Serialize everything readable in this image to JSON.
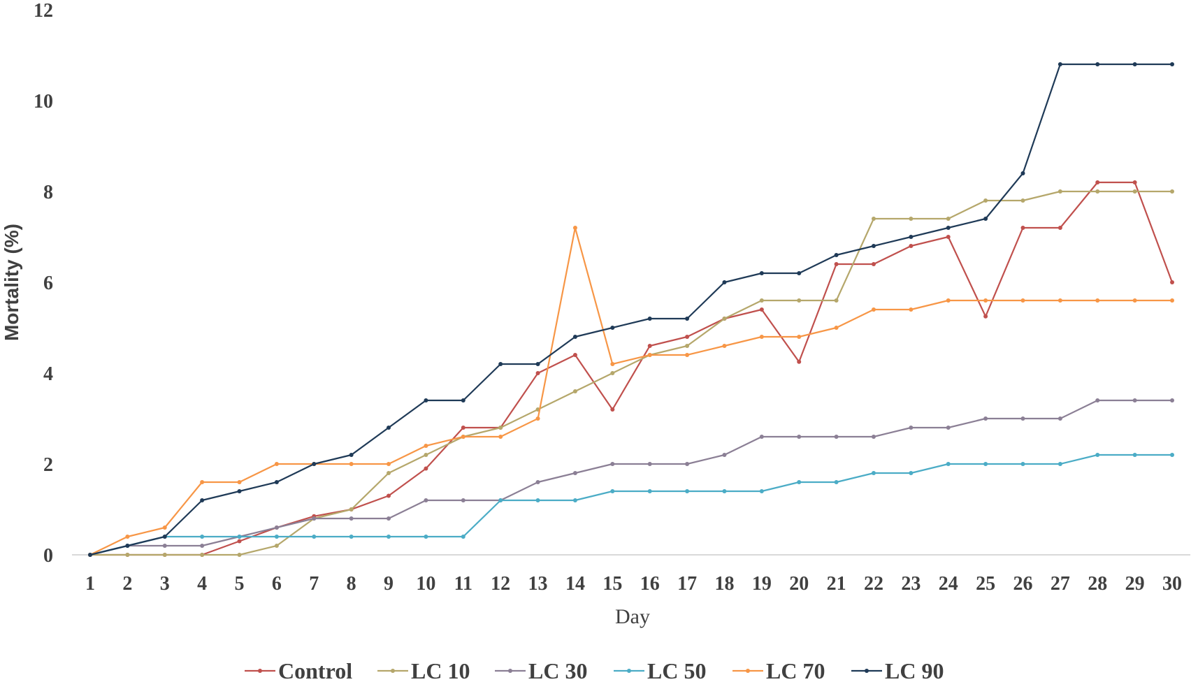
{
  "chart_data": {
    "type": "line",
    "xlabel": "Day",
    "ylabel": "Mortality (%)",
    "ylim": [
      0,
      12
    ],
    "yticks": [
      0,
      2,
      4,
      6,
      8,
      10,
      12
    ],
    "x": [
      1,
      2,
      3,
      4,
      5,
      6,
      7,
      8,
      9,
      10,
      11,
      12,
      13,
      14,
      15,
      16,
      17,
      18,
      19,
      20,
      21,
      22,
      23,
      24,
      25,
      26,
      27,
      28,
      29,
      30
    ],
    "grid": false,
    "legend_position": "bottom",
    "series": [
      {
        "name": "Control",
        "color": "#c0504d",
        "values": [
          0,
          0,
          0,
          0,
          0.3,
          0.6,
          0.85,
          1.0,
          1.3,
          1.9,
          2.8,
          2.8,
          4.0,
          4.4,
          3.2,
          4.6,
          4.8,
          5.2,
          5.4,
          4.25,
          6.4,
          6.4,
          6.8,
          7.0,
          5.25,
          7.2,
          7.2,
          8.2,
          8.2,
          6.0
        ]
      },
      {
        "name": "LC 10",
        "color": "#b5a76b",
        "values": [
          0,
          0,
          0,
          0,
          0,
          0.2,
          0.8,
          1.0,
          1.8,
          2.2,
          2.6,
          2.8,
          3.2,
          3.6,
          4.0,
          4.4,
          4.6,
          5.2,
          5.6,
          5.6,
          5.6,
          7.4,
          7.4,
          7.4,
          7.8,
          7.8,
          8.0,
          8.0,
          8.0,
          8.0
        ]
      },
      {
        "name": "LC 30",
        "color": "#8b7f95",
        "values": [
          0,
          0.2,
          0.2,
          0.2,
          0.4,
          0.6,
          0.8,
          0.8,
          0.8,
          1.2,
          1.2,
          1.2,
          1.6,
          1.8,
          2.0,
          2.0,
          2.0,
          2.2,
          2.6,
          2.6,
          2.6,
          2.6,
          2.8,
          2.8,
          3.0,
          3.0,
          3.0,
          3.4,
          3.4,
          3.4
        ]
      },
      {
        "name": "LC 50",
        "color": "#4bacc6",
        "values": [
          0,
          0.2,
          0.4,
          0.4,
          0.4,
          0.4,
          0.4,
          0.4,
          0.4,
          0.4,
          0.4,
          1.2,
          1.2,
          1.2,
          1.4,
          1.4,
          1.4,
          1.4,
          1.4,
          1.6,
          1.6,
          1.8,
          1.8,
          2.0,
          2.0,
          2.0,
          2.0,
          2.2,
          2.2,
          2.2
        ]
      },
      {
        "name": "LC 70",
        "color": "#f79646",
        "values": [
          0,
          0.4,
          0.6,
          1.6,
          1.6,
          2.0,
          2.0,
          2.0,
          2.0,
          2.4,
          2.6,
          2.6,
          3.0,
          7.2,
          4.2,
          4.4,
          4.4,
          4.6,
          4.8,
          4.8,
          5.0,
          5.4,
          5.4,
          5.6,
          5.6,
          5.6,
          5.6,
          5.6,
          5.6,
          5.6
        ]
      },
      {
        "name": "LC 90",
        "color": "#1f3a57",
        "values": [
          0,
          0.2,
          0.4,
          1.2,
          1.4,
          1.6,
          2.0,
          2.2,
          2.8,
          3.4,
          3.4,
          4.2,
          4.2,
          4.8,
          5.0,
          5.2,
          5.2,
          6.0,
          6.2,
          6.2,
          6.6,
          6.8,
          7.0,
          7.2,
          7.4,
          8.4,
          10.8,
          10.8,
          10.8,
          10.8
        ]
      }
    ]
  }
}
